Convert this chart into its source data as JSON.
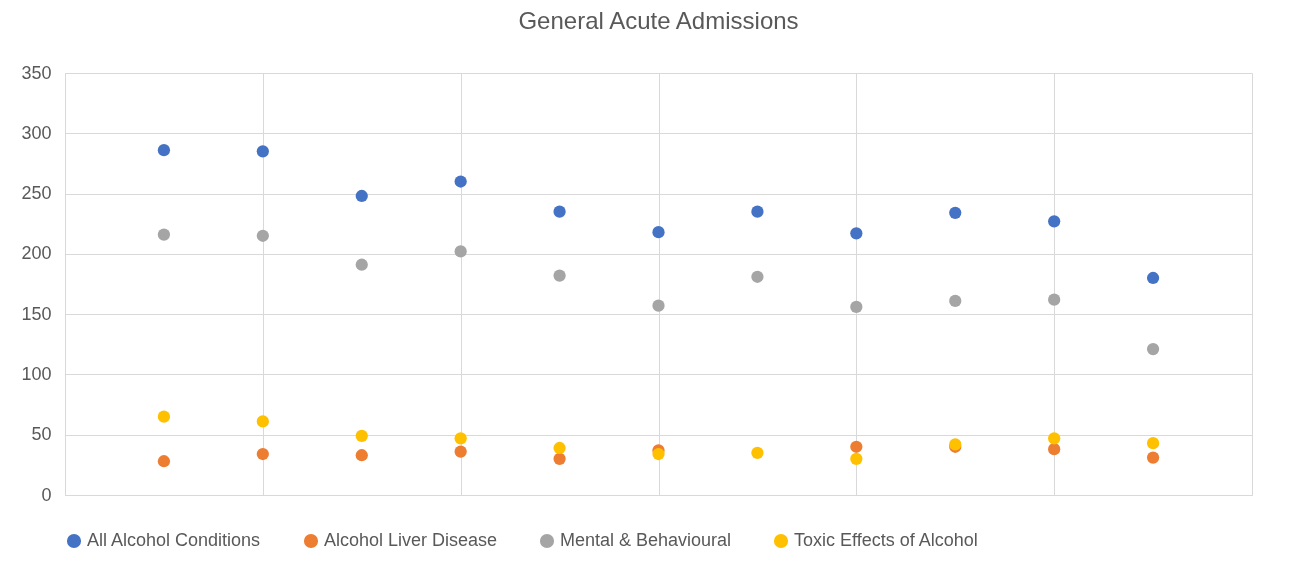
{
  "chart_data": {
    "type": "scatter",
    "title": "General Acute Admissions",
    "categories": [
      null,
      null,
      null,
      null,
      null,
      null,
      null,
      null,
      null,
      null,
      null
    ],
    "series": [
      {
        "name": "All Alcohol Conditions",
        "color": "#4472c4",
        "values": [
          286,
          285,
          248,
          260,
          235,
          218,
          235,
          217,
          234,
          227,
          180
        ]
      },
      {
        "name": "Alcohol Liver Disease",
        "color": "#ed7d31",
        "values": [
          28,
          34,
          33,
          36,
          30,
          37,
          null,
          40,
          40,
          38,
          31
        ]
      },
      {
        "name": "Mental & Behavioural",
        "color": "#a5a5a5",
        "values": [
          216,
          215,
          191,
          202,
          182,
          157,
          181,
          156,
          161,
          162,
          121
        ]
      },
      {
        "name": "Toxic Effects of Alcohol",
        "color": "#ffc000",
        "values": [
          65,
          61,
          49,
          47,
          39,
          34,
          35,
          30,
          42,
          47,
          43
        ]
      }
    ],
    "ylim": [
      0,
      350
    ],
    "yticks": [
      0,
      50,
      100,
      150,
      200,
      250,
      300,
      350
    ],
    "grid": true,
    "legend": "bottom",
    "marker": "circle"
  }
}
